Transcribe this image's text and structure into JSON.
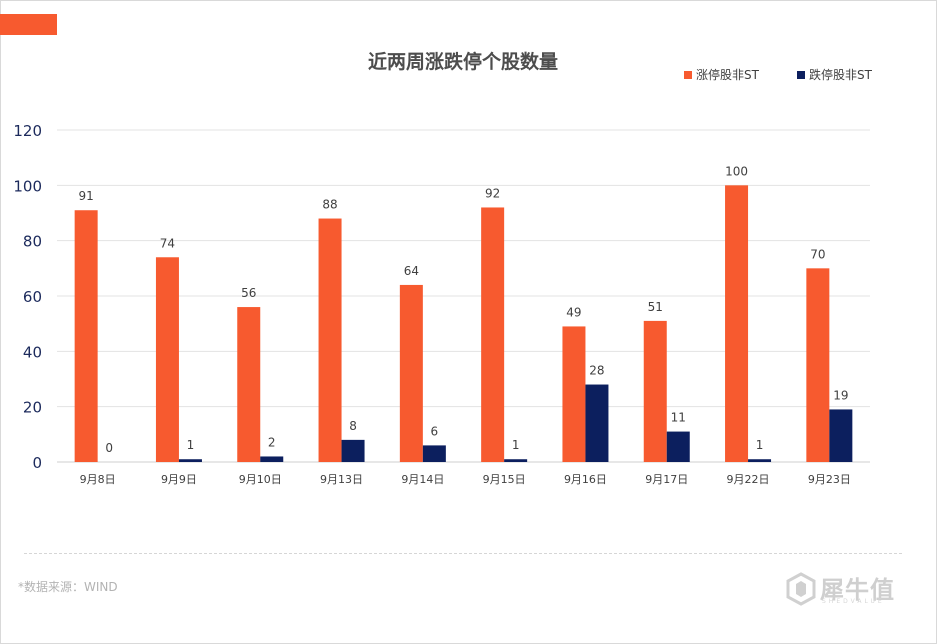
{
  "source": "*数据来源：WIND",
  "watermark": {
    "logo": "犀牛值",
    "sub": "SHEDVALUE"
  },
  "chart_data": {
    "type": "bar",
    "title": "近两周涨跌停个股数量",
    "categories": [
      "9月8日",
      "9月9日",
      "9月10日",
      "9月13日",
      "9月14日",
      "9月15日",
      "9月16日",
      "9月17日",
      "9月22日",
      "9月23日"
    ],
    "series": [
      {
        "name": "涨停股非ST",
        "color": "#f75a2f",
        "values": [
          91,
          74,
          56,
          88,
          64,
          92,
          49,
          51,
          100,
          70
        ]
      },
      {
        "name": "跌停股非ST",
        "color": "#0c1f5e",
        "values": [
          0,
          1,
          2,
          8,
          6,
          1,
          28,
          11,
          1,
          19
        ]
      }
    ],
    "ylim": [
      0,
      120
    ],
    "yticks": [
      0,
      20,
      40,
      60,
      80,
      100,
      120
    ],
    "grid": true,
    "legend": "top-right",
    "xlabel": "",
    "ylabel": ""
  }
}
